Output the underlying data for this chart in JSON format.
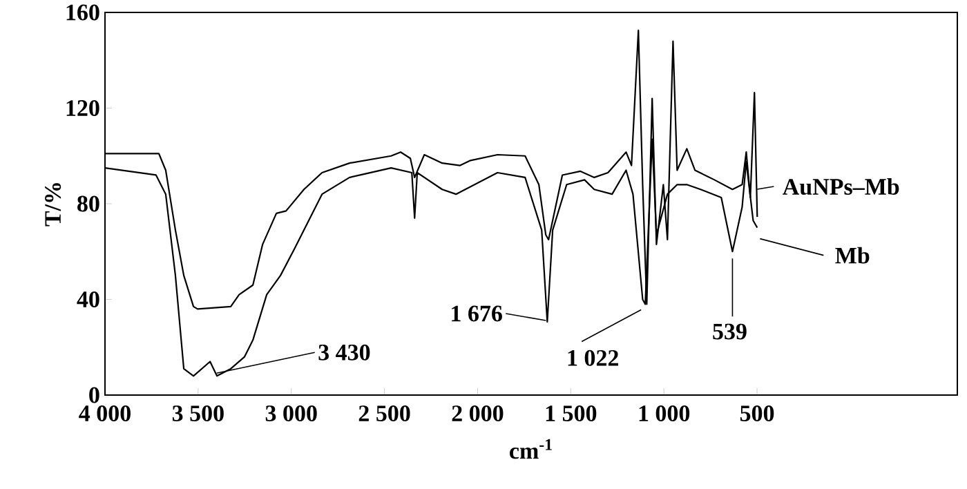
{
  "chart_data": {
    "type": "line",
    "xlabel": "cm$^{-1}$",
    "ylabel": "T/%",
    "xlim": [
      4000,
      -575
    ],
    "ylim": [
      0,
      160
    ],
    "xticks": [
      {
        "value": 4000,
        "label": "4 000"
      },
      {
        "value": 3500,
        "label": "3 500"
      },
      {
        "value": 3000,
        "label": "3 000"
      },
      {
        "value": 2500,
        "label": "2 500"
      },
      {
        "value": 2000,
        "label": "2 000"
      },
      {
        "value": 1500,
        "label": "1 500"
      },
      {
        "value": 1000,
        "label": "1 000"
      },
      500
    ],
    "yticks": [
      0,
      40,
      80,
      120,
      160
    ],
    "grid": false,
    "legend": "right",
    "series": [
      {
        "name": "AuNPs–Mb",
        "color": "#000000",
        "x": [
          4000,
          3711,
          3674,
          3622,
          3577,
          3525,
          3503,
          3325,
          3280,
          3206,
          3154,
          3080,
          3028,
          2932,
          2835,
          2687,
          2464,
          2413,
          2361,
          2338,
          2286,
          2190,
          2094,
          2042,
          1893,
          1745,
          1671,
          1634,
          1619,
          1545,
          1448,
          1374,
          1300,
          1203,
          1174,
          1137,
          1114,
          1092,
          1063,
          1040,
          1003,
          981,
          951,
          929,
          877,
          833,
          729,
          632,
          580,
          558,
          536,
          514,
          499
        ],
        "values": [
          101,
          101,
          94,
          69,
          50,
          37,
          36,
          37,
          42,
          46,
          63,
          76,
          77,
          86,
          93,
          97,
          100,
          101.6,
          99,
          91,
          100.5,
          97,
          96,
          98,
          100.5,
          100,
          88,
          67,
          65,
          92,
          93.6,
          91,
          93,
          101.6,
          96,
          152.5,
          88,
          38,
          124,
          63,
          88,
          65,
          148,
          94,
          103,
          94,
          90,
          86,
          88,
          101.6,
          82.6,
          126.5,
          74.5
        ]
      },
      {
        "name": "Mb",
        "color": "#000000",
        "x": [
          4000,
          3726,
          3674,
          3622,
          3577,
          3525,
          3436,
          3399,
          3325,
          3251,
          3206,
          3132,
          3058,
          2984,
          2835,
          2687,
          2464,
          2353,
          2338,
          2324,
          2190,
          2116,
          1893,
          1745,
          1656,
          1626,
          1597,
          1522,
          1426,
          1374,
          1278,
          1203,
          1166,
          1114,
          1100,
          1063,
          1040,
          981,
          929,
          877,
          803,
          692,
          632,
          580,
          558,
          521,
          499
        ],
        "values": [
          95,
          92,
          84,
          50,
          11,
          8,
          14,
          8,
          11,
          16,
          23,
          42,
          50,
          61,
          84,
          91,
          95,
          93,
          74,
          93,
          86,
          84,
          93,
          91,
          69,
          30.6,
          69,
          88,
          90,
          86,
          84,
          94,
          84,
          40,
          38,
          107,
          67,
          84,
          88,
          88,
          86,
          82.6,
          60,
          78.6,
          97.6,
          73,
          70
        ]
      }
    ],
    "annotations": [
      {
        "text": "3 430",
        "x": 3430,
        "y": 8
      },
      {
        "text": "1 676",
        "x": 1626,
        "y": 30.6
      },
      {
        "text": "1 022",
        "x": 1100,
        "y": 38
      },
      {
        "text": "539",
        "x": 632,
        "y": 60
      }
    ]
  }
}
